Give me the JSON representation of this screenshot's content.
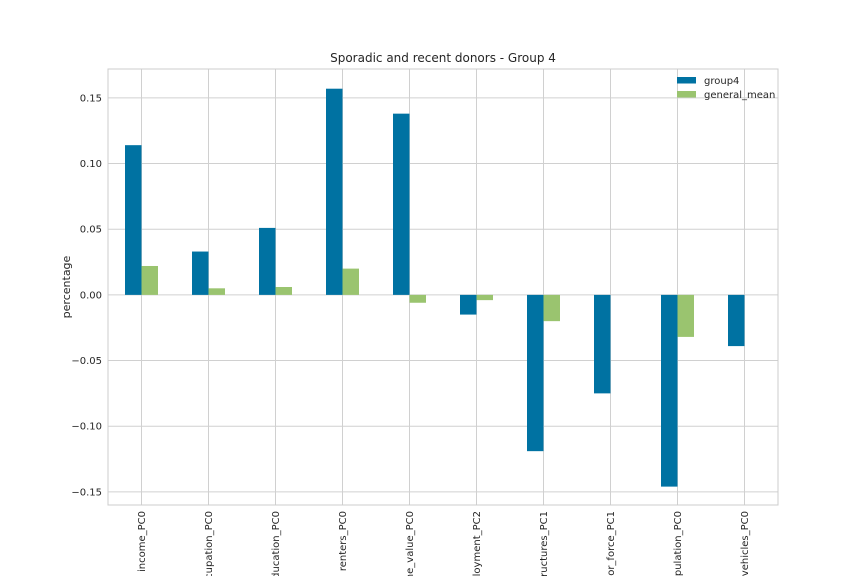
{
  "chart_data": {
    "type": "bar",
    "title": "Sporadic and recent donors - Group 4",
    "xlabel": "",
    "ylabel": "percentage",
    "categories": [
      "income_PC0",
      "ccupation_PC0",
      "ducation_PC0",
      "renters_PC0",
      "me_value_PC0",
      "ployment_PC2",
      "tructures_PC1",
      "or_force_PC1",
      "opulation_PC0",
      "vehicles_PC0"
    ],
    "series": [
      {
        "name": "group4",
        "values": [
          0.114,
          0.033,
          0.051,
          0.157,
          0.138,
          -0.015,
          -0.119,
          -0.075,
          -0.146,
          -0.039
        ]
      },
      {
        "name": "general_mean",
        "values": [
          0.022,
          0.005,
          0.006,
          0.02,
          -0.006,
          -0.004,
          -0.02,
          0.0,
          -0.032,
          0.0
        ]
      }
    ],
    "ylim": [
      -0.16,
      0.172
    ],
    "yticks": [
      -0.15,
      -0.1,
      -0.05,
      0.0,
      0.05,
      0.1,
      0.15
    ],
    "ytick_labels": [
      "−0.15",
      "−0.10",
      "−0.05",
      "0.00",
      "0.05",
      "0.10",
      "0.15"
    ],
    "grid": true,
    "legend_position": "top-right",
    "colors": {
      "group4": "#0072a2",
      "general_mean": "#9ac46f",
      "grid": "#d0d0d0",
      "axes": "#cccccc"
    }
  }
}
